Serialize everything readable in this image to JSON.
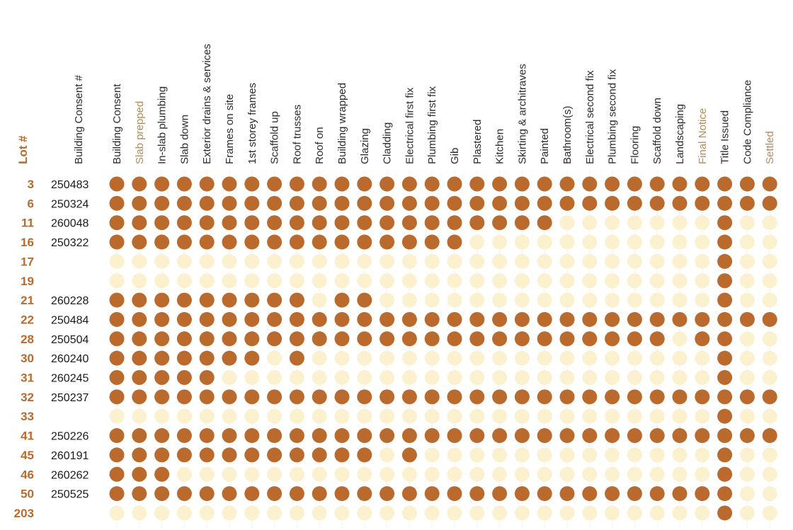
{
  "colors": {
    "complete": "#b96a2c",
    "pending": "#fbf1cf",
    "accent_label": "#b58a5c",
    "lot_label": "#b96a2c"
  },
  "chart_data": {
    "type": "table",
    "lot_header": "Lot #",
    "consent_header": "Building Consent #",
    "stages": [
      "Building Consent",
      "Slab prepped",
      "In-slab plumbing",
      "Slab down",
      "Exterior drains & services",
      "Frames on site",
      "1st storey frames",
      "Scaffold up",
      "Roof trusses",
      "Roof on",
      "Building wrapped",
      "Glazing",
      "Cladding",
      "Electrical first fix",
      "Plumbing first fix",
      "Gib",
      "Plastered",
      "Kitchen",
      "Skirting & architraves",
      "Painted",
      "Bathroom(s)",
      "Electrical second fix",
      "Plumbing second fix",
      "Flooring",
      "Scaffold down",
      "Landscaping",
      "Final Notice",
      "Title Issued",
      "Code Compliance",
      "Settled"
    ],
    "accent_stages": [
      "Slab prepped",
      "Final Notice",
      "Settled"
    ],
    "rows": [
      {
        "lot": "3",
        "consent": "250483",
        "status": "111111111111111111111111111111"
      },
      {
        "lot": "6",
        "consent": "250324",
        "status": "111111111111111111111111111111"
      },
      {
        "lot": "11",
        "consent": "260048",
        "status": "111111111111111111110000000100"
      },
      {
        "lot": "16",
        "consent": "250322",
        "status": "111111111111111100000000000100"
      },
      {
        "lot": "17",
        "consent": "",
        "status": "000000000000000000000000000100"
      },
      {
        "lot": "19",
        "consent": "",
        "status": "000000000000000000000000000100"
      },
      {
        "lot": "21",
        "consent": "260228",
        "status": "111111111011000000000000000100"
      },
      {
        "lot": "22",
        "consent": "250484",
        "status": "111111111111111111111111111111"
      },
      {
        "lot": "28",
        "consent": "250504",
        "status": "111111111111111111111111101100"
      },
      {
        "lot": "30",
        "consent": "260240",
        "status": "111111101000000000000000000100"
      },
      {
        "lot": "31",
        "consent": "260245",
        "status": "111110000000000000000000000100"
      },
      {
        "lot": "32",
        "consent": "250237",
        "status": "111111111111111111111111111111"
      },
      {
        "lot": "33",
        "consent": "",
        "status": "000000000000000000000000000100"
      },
      {
        "lot": "41",
        "consent": "250226",
        "status": "111111111111111111111111111111"
      },
      {
        "lot": "45",
        "consent": "260191",
        "status": "111111111111010000000000000100"
      },
      {
        "lot": "46",
        "consent": "260262",
        "status": "111000000000000000000000000100"
      },
      {
        "lot": "50",
        "consent": "250525",
        "status": "111111111111111111111111111100"
      },
      {
        "lot": "203",
        "consent": "",
        "status": "000000000000000000000000000100"
      }
    ]
  }
}
